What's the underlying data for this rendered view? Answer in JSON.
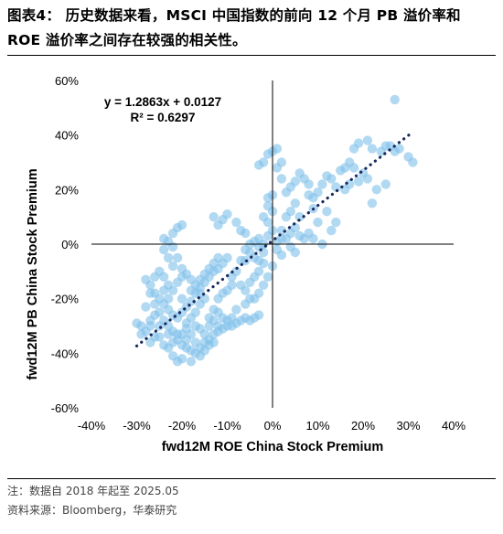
{
  "header": {
    "title": "图表4：  历史数据来看，MSCI 中国指数的前向 12 个月 PB 溢价率和 ROE 溢价率之间存在较强的相关性。"
  },
  "footer": {
    "note": "注：数据自 2018 年起至 2025.05",
    "source": "资料来源：Bloomberg，华泰研究"
  },
  "chart_data": {
    "type": "scatter",
    "xlabel": "fwd12M ROE China Stock Premium",
    "ylabel": "fwd12M PB China Stock Premium",
    "xlim": [
      -0.4,
      0.4
    ],
    "ylim": [
      -0.6,
      0.6
    ],
    "x_ticks": [
      {
        "v": -0.4,
        "label": "-40%"
      },
      {
        "v": -0.3,
        "label": "-30%"
      },
      {
        "v": -0.2,
        "label": "-20%"
      },
      {
        "v": -0.1,
        "label": "-10%"
      },
      {
        "v": 0.0,
        "label": "0%"
      },
      {
        "v": 0.1,
        "label": "10%"
      },
      {
        "v": 0.2,
        "label": "20%"
      },
      {
        "v": 0.3,
        "label": "30%"
      },
      {
        "v": 0.4,
        "label": "40%"
      }
    ],
    "y_ticks": [
      {
        "v": 0.6,
        "label": "60%"
      },
      {
        "v": 0.4,
        "label": "40%"
      },
      {
        "v": 0.2,
        "label": "20%"
      },
      {
        "v": 0.0,
        "label": "0%"
      },
      {
        "v": -0.2,
        "label": "-20%"
      },
      {
        "v": -0.4,
        "label": "-40%"
      },
      {
        "v": -0.6,
        "label": "-60%"
      }
    ],
    "trendline": {
      "equation": "y = 1.2863x + 0.0127",
      "r_squared": "R² = 0.6297",
      "slope": 1.2863,
      "intercept": 0.0127,
      "x_range": [
        -0.3,
        0.31
      ],
      "color": "#1a2a5e"
    },
    "point_color": "#7fbfea",
    "grid": false,
    "legend": "none",
    "points": [
      [
        0.27,
        0.53
      ],
      [
        0.31,
        0.3
      ],
      [
        0.3,
        0.32
      ],
      [
        0.28,
        0.35
      ],
      [
        0.27,
        0.34
      ],
      [
        0.26,
        0.36
      ],
      [
        0.25,
        0.36
      ],
      [
        0.24,
        0.34
      ],
      [
        0.22,
        0.35
      ],
      [
        0.21,
        0.38
      ],
      [
        0.19,
        0.37
      ],
      [
        0.18,
        0.35
      ],
      [
        0.17,
        0.3
      ],
      [
        0.16,
        0.28
      ],
      [
        0.15,
        0.27
      ],
      [
        0.18,
        0.28
      ],
      [
        0.2,
        0.26
      ],
      [
        0.21,
        0.24
      ],
      [
        0.19,
        0.23
      ],
      [
        0.17,
        0.22
      ],
      [
        0.16,
        0.2
      ],
      [
        0.14,
        0.21
      ],
      [
        0.13,
        0.24
      ],
      [
        0.12,
        0.25
      ],
      [
        0.11,
        0.22
      ],
      [
        0.1,
        0.19
      ],
      [
        0.09,
        0.17
      ],
      [
        0.08,
        0.18
      ],
      [
        0.08,
        0.22
      ],
      [
        0.07,
        0.24
      ],
      [
        0.06,
        0.26
      ],
      [
        0.05,
        0.23
      ],
      [
        0.04,
        0.21
      ],
      [
        0.03,
        0.19
      ],
      [
        0.02,
        0.24
      ],
      [
        0.01,
        0.28
      ],
      [
        0.02,
        0.3
      ],
      [
        0.0,
        0.34
      ],
      [
        -0.01,
        0.33
      ],
      [
        0.01,
        0.35
      ],
      [
        -0.02,
        0.3
      ],
      [
        -0.03,
        0.29
      ],
      [
        0.03,
        0.1
      ],
      [
        0.02,
        0.05
      ],
      [
        0.03,
        0.02
      ],
      [
        0.04,
        0.04
      ],
      [
        0.05,
        0.06
      ],
      [
        0.06,
        0.03
      ],
      [
        0.07,
        0.02
      ],
      [
        0.08,
        0.04
      ],
      [
        0.09,
        0.02
      ],
      [
        0.11,
        0.0
      ],
      [
        0.13,
        0.05
      ],
      [
        0.14,
        0.08
      ],
      [
        0.1,
        0.08
      ],
      [
        0.12,
        0.12
      ],
      [
        0.04,
        0.12
      ],
      [
        0.05,
        0.15
      ],
      [
        0.06,
        0.1
      ],
      [
        0.09,
        0.13
      ],
      [
        0.22,
        0.15
      ],
      [
        0.23,
        0.2
      ],
      [
        0.25,
        0.22
      ],
      [
        0.0,
        0.18
      ],
      [
        -0.01,
        0.17
      ],
      [
        -0.01,
        0.14
      ],
      [
        0.0,
        0.12
      ],
      [
        -0.02,
        0.1
      ],
      [
        -0.01,
        0.08
      ],
      [
        0.0,
        0.05
      ],
      [
        -0.01,
        0.03
      ],
      [
        -0.02,
        0.0
      ],
      [
        -0.03,
        -0.01
      ],
      [
        -0.02,
        -0.03
      ],
      [
        0.01,
        -0.02
      ],
      [
        0.02,
        -0.04
      ],
      [
        0.04,
        -0.01
      ],
      [
        0.05,
        -0.03
      ],
      [
        0.01,
        0.01
      ],
      [
        0.02,
        0.02
      ],
      [
        -0.04,
        -0.05
      ],
      [
        -0.05,
        -0.03
      ],
      [
        -0.06,
        -0.02
      ],
      [
        -0.07,
        -0.06
      ],
      [
        -0.08,
        -0.1
      ],
      [
        -0.07,
        -0.15
      ],
      [
        -0.06,
        -0.17
      ],
      [
        -0.05,
        -0.14
      ],
      [
        -0.04,
        -0.12
      ],
      [
        -0.03,
        -0.1
      ],
      [
        -0.05,
        -0.2
      ],
      [
        -0.06,
        -0.22
      ],
      [
        -0.08,
        -0.24
      ],
      [
        -0.09,
        -0.27
      ],
      [
        -0.1,
        -0.28
      ],
      [
        -0.11,
        -0.27
      ],
      [
        -0.12,
        -0.25
      ],
      [
        -0.13,
        -0.24
      ],
      [
        -0.12,
        -0.2
      ],
      [
        -0.11,
        -0.18
      ],
      [
        -0.1,
        -0.17
      ],
      [
        -0.09,
        -0.15
      ],
      [
        -0.09,
        -0.12
      ],
      [
        -0.1,
        -0.05
      ],
      [
        -0.11,
        -0.07
      ],
      [
        -0.12,
        -0.09
      ],
      [
        -0.13,
        -0.1
      ],
      [
        -0.14,
        -0.12
      ],
      [
        -0.15,
        -0.14
      ],
      [
        -0.16,
        -0.16
      ],
      [
        -0.17,
        -0.18
      ],
      [
        -0.18,
        -0.21
      ],
      [
        -0.19,
        -0.23
      ],
      [
        -0.2,
        -0.25
      ],
      [
        -0.21,
        -0.27
      ],
      [
        -0.22,
        -0.26
      ],
      [
        -0.23,
        -0.24
      ],
      [
        -0.24,
        -0.22
      ],
      [
        -0.25,
        -0.2
      ],
      [
        -0.26,
        -0.18
      ],
      [
        -0.27,
        -0.15
      ],
      [
        -0.28,
        -0.13
      ],
      [
        -0.27,
        -0.18
      ],
      [
        -0.26,
        -0.22
      ],
      [
        -0.25,
        -0.25
      ],
      [
        -0.24,
        -0.28
      ],
      [
        -0.23,
        -0.3
      ],
      [
        -0.22,
        -0.32
      ],
      [
        -0.21,
        -0.35
      ],
      [
        -0.2,
        -0.37
      ],
      [
        -0.19,
        -0.38
      ],
      [
        -0.18,
        -0.39
      ],
      [
        -0.17,
        -0.4
      ],
      [
        -0.16,
        -0.38
      ],
      [
        -0.15,
        -0.36
      ],
      [
        -0.14,
        -0.35
      ],
      [
        -0.13,
        -0.33
      ],
      [
        -0.12,
        -0.32
      ],
      [
        -0.14,
        -0.3
      ],
      [
        -0.16,
        -0.31
      ],
      [
        -0.18,
        -0.33
      ],
      [
        -0.2,
        -0.33
      ],
      [
        -0.22,
        -0.36
      ],
      [
        -0.24,
        -0.37
      ],
      [
        -0.26,
        -0.34
      ],
      [
        -0.28,
        -0.32
      ],
      [
        -0.29,
        -0.3
      ],
      [
        -0.27,
        -0.28
      ],
      [
        -0.25,
        -0.3
      ],
      [
        -0.23,
        -0.38
      ],
      [
        -0.22,
        -0.41
      ],
      [
        -0.21,
        -0.43
      ],
      [
        -0.2,
        -0.42
      ],
      [
        -0.18,
        -0.43
      ],
      [
        -0.16,
        -0.41
      ],
      [
        -0.15,
        -0.39
      ],
      [
        -0.14,
        -0.37
      ],
      [
        -0.13,
        -0.36
      ],
      [
        -0.17,
        -0.36
      ],
      [
        -0.19,
        -0.35
      ],
      [
        -0.21,
        -0.33
      ],
      [
        -0.23,
        -0.33
      ],
      [
        -0.25,
        -0.34
      ],
      [
        -0.27,
        -0.36
      ],
      [
        -0.29,
        -0.33
      ],
      [
        -0.3,
        -0.29
      ],
      [
        -0.28,
        -0.23
      ],
      [
        -0.26,
        -0.12
      ],
      [
        -0.25,
        -0.1
      ],
      [
        -0.24,
        -0.12
      ],
      [
        -0.23,
        -0.15
      ],
      [
        -0.22,
        -0.17
      ],
      [
        -0.21,
        -0.14
      ],
      [
        -0.2,
        -0.12
      ],
      [
        -0.21,
        -0.05
      ],
      [
        -0.22,
        -0.01
      ],
      [
        -0.23,
        0.01
      ],
      [
        -0.24,
        0.02
      ],
      [
        -0.22,
        0.04
      ],
      [
        -0.21,
        0.06
      ],
      [
        -0.2,
        0.07
      ],
      [
        -0.24,
        -0.02
      ],
      [
        -0.23,
        -0.05
      ],
      [
        -0.22,
        -0.08
      ],
      [
        -0.2,
        -0.09
      ],
      [
        -0.19,
        -0.11
      ],
      [
        -0.18,
        -0.13
      ],
      [
        -0.17,
        -0.15
      ],
      [
        -0.16,
        -0.13
      ],
      [
        -0.15,
        -0.11
      ],
      [
        -0.14,
        -0.09
      ],
      [
        -0.13,
        -0.07
      ],
      [
        -0.12,
        -0.05
      ],
      [
        -0.15,
        -0.2
      ],
      [
        -0.16,
        -0.22
      ],
      [
        -0.17,
        -0.25
      ],
      [
        -0.18,
        -0.27
      ],
      [
        -0.19,
        -0.29
      ],
      [
        -0.14,
        -0.27
      ],
      [
        -0.13,
        -0.28
      ],
      [
        -0.12,
        -0.3
      ],
      [
        -0.11,
        -0.31
      ],
      [
        -0.1,
        -0.3
      ],
      [
        -0.09,
        -0.3
      ],
      [
        -0.08,
        -0.29
      ],
      [
        -0.07,
        -0.28
      ],
      [
        -0.06,
        -0.27
      ],
      [
        -0.05,
        -0.28
      ],
      [
        -0.04,
        -0.27
      ],
      [
        -0.03,
        -0.26
      ],
      [
        -0.04,
        -0.2
      ],
      [
        -0.03,
        -0.18
      ],
      [
        -0.02,
        -0.15
      ],
      [
        -0.01,
        -0.12
      ],
      [
        0.0,
        -0.08
      ],
      [
        -0.03,
        -0.06
      ],
      [
        -0.02,
        -0.07
      ],
      [
        -0.13,
        0.1
      ],
      [
        -0.12,
        0.07
      ],
      [
        -0.11,
        0.09
      ],
      [
        -0.1,
        0.11
      ],
      [
        -0.08,
        0.08
      ],
      [
        -0.07,
        0.05
      ],
      [
        -0.06,
        0.04
      ],
      [
        -0.05,
        0.0
      ],
      [
        -0.04,
        0.01
      ],
      [
        -0.03,
        0.02
      ],
      [
        -0.06,
        -0.06
      ],
      [
        -0.15,
        -0.33
      ],
      [
        -0.17,
        -0.3
      ],
      [
        -0.19,
        -0.31
      ],
      [
        -0.23,
        -0.2
      ],
      [
        -0.24,
        -0.17
      ],
      [
        -0.26,
        -0.26
      ],
      [
        -0.27,
        -0.3
      ],
      [
        -0.2,
        -0.2
      ],
      [
        -0.18,
        -0.17
      ],
      [
        -0.16,
        -0.18
      ]
    ]
  }
}
